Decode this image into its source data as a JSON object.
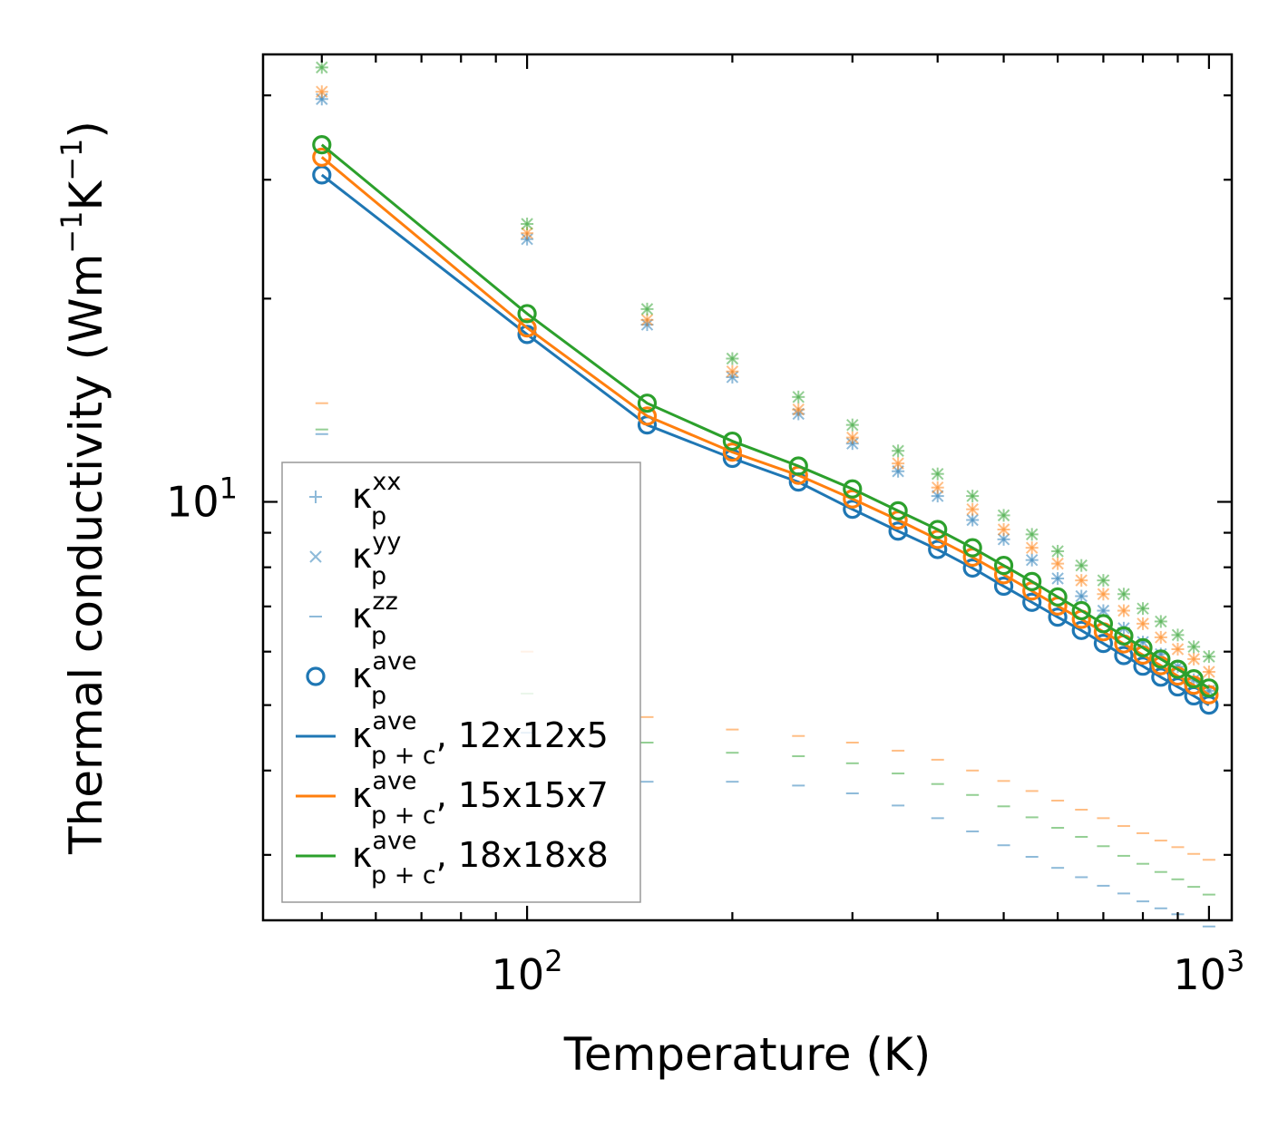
{
  "chart_data": {
    "type": "line",
    "xlabel": "Temperature (K)",
    "ylabel": "Thermal conductivity (Wm",
    "ylabel_unit_sup": "−1",
    "ylabel_unit_K": "K",
    "ylabel_unit_K_sup": "−1",
    "ylabel_close": ")",
    "xscale": "log",
    "yscale": "log",
    "xlim": [
      41,
      1080
    ],
    "ylim": [
      2.4,
      46
    ],
    "x_major_ticks": [
      {
        "value": 100,
        "base": "10",
        "exp": "2"
      },
      {
        "value": 1000,
        "base": "10",
        "exp": "3"
      }
    ],
    "y_major_ticks": [
      {
        "value": 10,
        "base": "10",
        "exp": "1"
      }
    ],
    "x": [
      50,
      100,
      150,
      200,
      250,
      300,
      350,
      400,
      450,
      500,
      550,
      600,
      650,
      700,
      750,
      800,
      850,
      900,
      950,
      1000
    ],
    "colors": {
      "c12": "#1f77b4",
      "c15": "#ff7f0e",
      "c18": "#2ca02c"
    },
    "series": [
      {
        "name": "12x12x5",
        "color_key": "c12",
        "kxx": [
          39.5,
          24.5,
          18.3,
          15.3,
          13.5,
          12.2,
          11.1,
          10.2,
          9.4,
          8.8,
          8.2,
          7.7,
          7.25,
          6.9,
          6.5,
          6.2,
          5.95,
          5.7,
          5.45,
          5.25
        ],
        "kyy": [
          39.5,
          24.5,
          18.3,
          15.3,
          13.5,
          12.2,
          11.1,
          10.2,
          9.4,
          8.8,
          8.2,
          7.7,
          7.25,
          6.9,
          6.5,
          6.2,
          5.95,
          5.7,
          5.45,
          5.25
        ],
        "kzz": [
          12.6,
          4.55,
          3.85,
          3.85,
          3.8,
          3.7,
          3.55,
          3.4,
          3.25,
          3.1,
          2.98,
          2.87,
          2.78,
          2.7,
          2.63,
          2.56,
          2.5,
          2.45,
          2.4,
          2.35
        ],
        "kave": [
          30.5,
          17.7,
          13.0,
          11.6,
          10.7,
          9.75,
          9.05,
          8.5,
          7.98,
          7.5,
          7.1,
          6.75,
          6.45,
          6.17,
          5.92,
          5.71,
          5.5,
          5.32,
          5.16,
          5.0
        ]
      },
      {
        "name": "15x15x7",
        "color_key": "c15",
        "kxx": [
          40.5,
          25.0,
          18.6,
          15.6,
          13.7,
          12.45,
          11.4,
          10.5,
          9.75,
          9.1,
          8.55,
          8.1,
          7.65,
          7.3,
          6.9,
          6.6,
          6.3,
          6.05,
          5.85,
          5.6
        ],
        "kyy": [
          40.5,
          25.0,
          18.6,
          15.6,
          13.7,
          12.45,
          11.4,
          10.5,
          9.75,
          9.1,
          8.55,
          8.1,
          7.65,
          7.3,
          6.9,
          6.6,
          6.3,
          6.05,
          5.85,
          5.6
        ],
        "kzz": [
          14.0,
          6.0,
          4.8,
          4.6,
          4.5,
          4.4,
          4.28,
          4.15,
          4.0,
          3.86,
          3.73,
          3.61,
          3.5,
          3.4,
          3.31,
          3.23,
          3.15,
          3.08,
          3.01,
          2.95
        ],
        "kave": [
          32.4,
          18.1,
          13.4,
          11.85,
          10.95,
          10.1,
          9.4,
          8.8,
          8.28,
          7.8,
          7.38,
          7.01,
          6.7,
          6.42,
          6.16,
          5.93,
          5.72,
          5.52,
          5.35,
          5.18
        ]
      },
      {
        "name": "18x18x8",
        "color_key": "c18",
        "kxx": [
          44.0,
          25.8,
          19.3,
          16.3,
          14.3,
          13.0,
          11.9,
          11.0,
          10.2,
          9.55,
          8.95,
          8.45,
          8.05,
          7.65,
          7.3,
          6.95,
          6.65,
          6.35,
          6.1,
          5.9
        ],
        "kyy": [
          44.0,
          25.8,
          19.3,
          16.3,
          14.3,
          13.0,
          11.9,
          11.0,
          10.2,
          9.55,
          8.95,
          8.45,
          8.05,
          7.65,
          7.3,
          6.95,
          6.65,
          6.35,
          6.1,
          5.9
        ],
        "kzz": [
          12.8,
          5.2,
          4.4,
          4.25,
          4.2,
          4.1,
          3.96,
          3.82,
          3.68,
          3.54,
          3.41,
          3.29,
          3.19,
          3.09,
          2.99,
          2.91,
          2.83,
          2.76,
          2.69,
          2.62
        ],
        "kave": [
          33.8,
          19.0,
          14.0,
          12.3,
          11.3,
          10.45,
          9.7,
          9.1,
          8.55,
          8.05,
          7.62,
          7.23,
          6.9,
          6.6,
          6.33,
          6.08,
          5.85,
          5.65,
          5.47,
          5.3
        ]
      }
    ],
    "legend": {
      "position": "lower-left",
      "symbol": "κ",
      "entries": [
        {
          "marker": "plus",
          "color_key": "c12",
          "sub": "p",
          "sup": "xx",
          "suffix": ""
        },
        {
          "marker": "x",
          "color_key": "c12",
          "sub": "p",
          "sup": "yy",
          "suffix": ""
        },
        {
          "marker": "dash",
          "color_key": "c12",
          "sub": "p",
          "sup": "zz",
          "suffix": ""
        },
        {
          "marker": "circle",
          "color_key": "c12",
          "sub": "p",
          "sup": "ave",
          "suffix": ""
        },
        {
          "marker": "line",
          "color_key": "c12",
          "sub": "p + c",
          "sup": "ave",
          "suffix": ", 12x12x5"
        },
        {
          "marker": "line",
          "color_key": "c15",
          "sub": "p + c",
          "sup": "ave",
          "suffix": ", 15x15x7"
        },
        {
          "marker": "line",
          "color_key": "c18",
          "sub": "p + c",
          "sup": "ave",
          "suffix": ", 18x18x8"
        }
      ]
    }
  }
}
